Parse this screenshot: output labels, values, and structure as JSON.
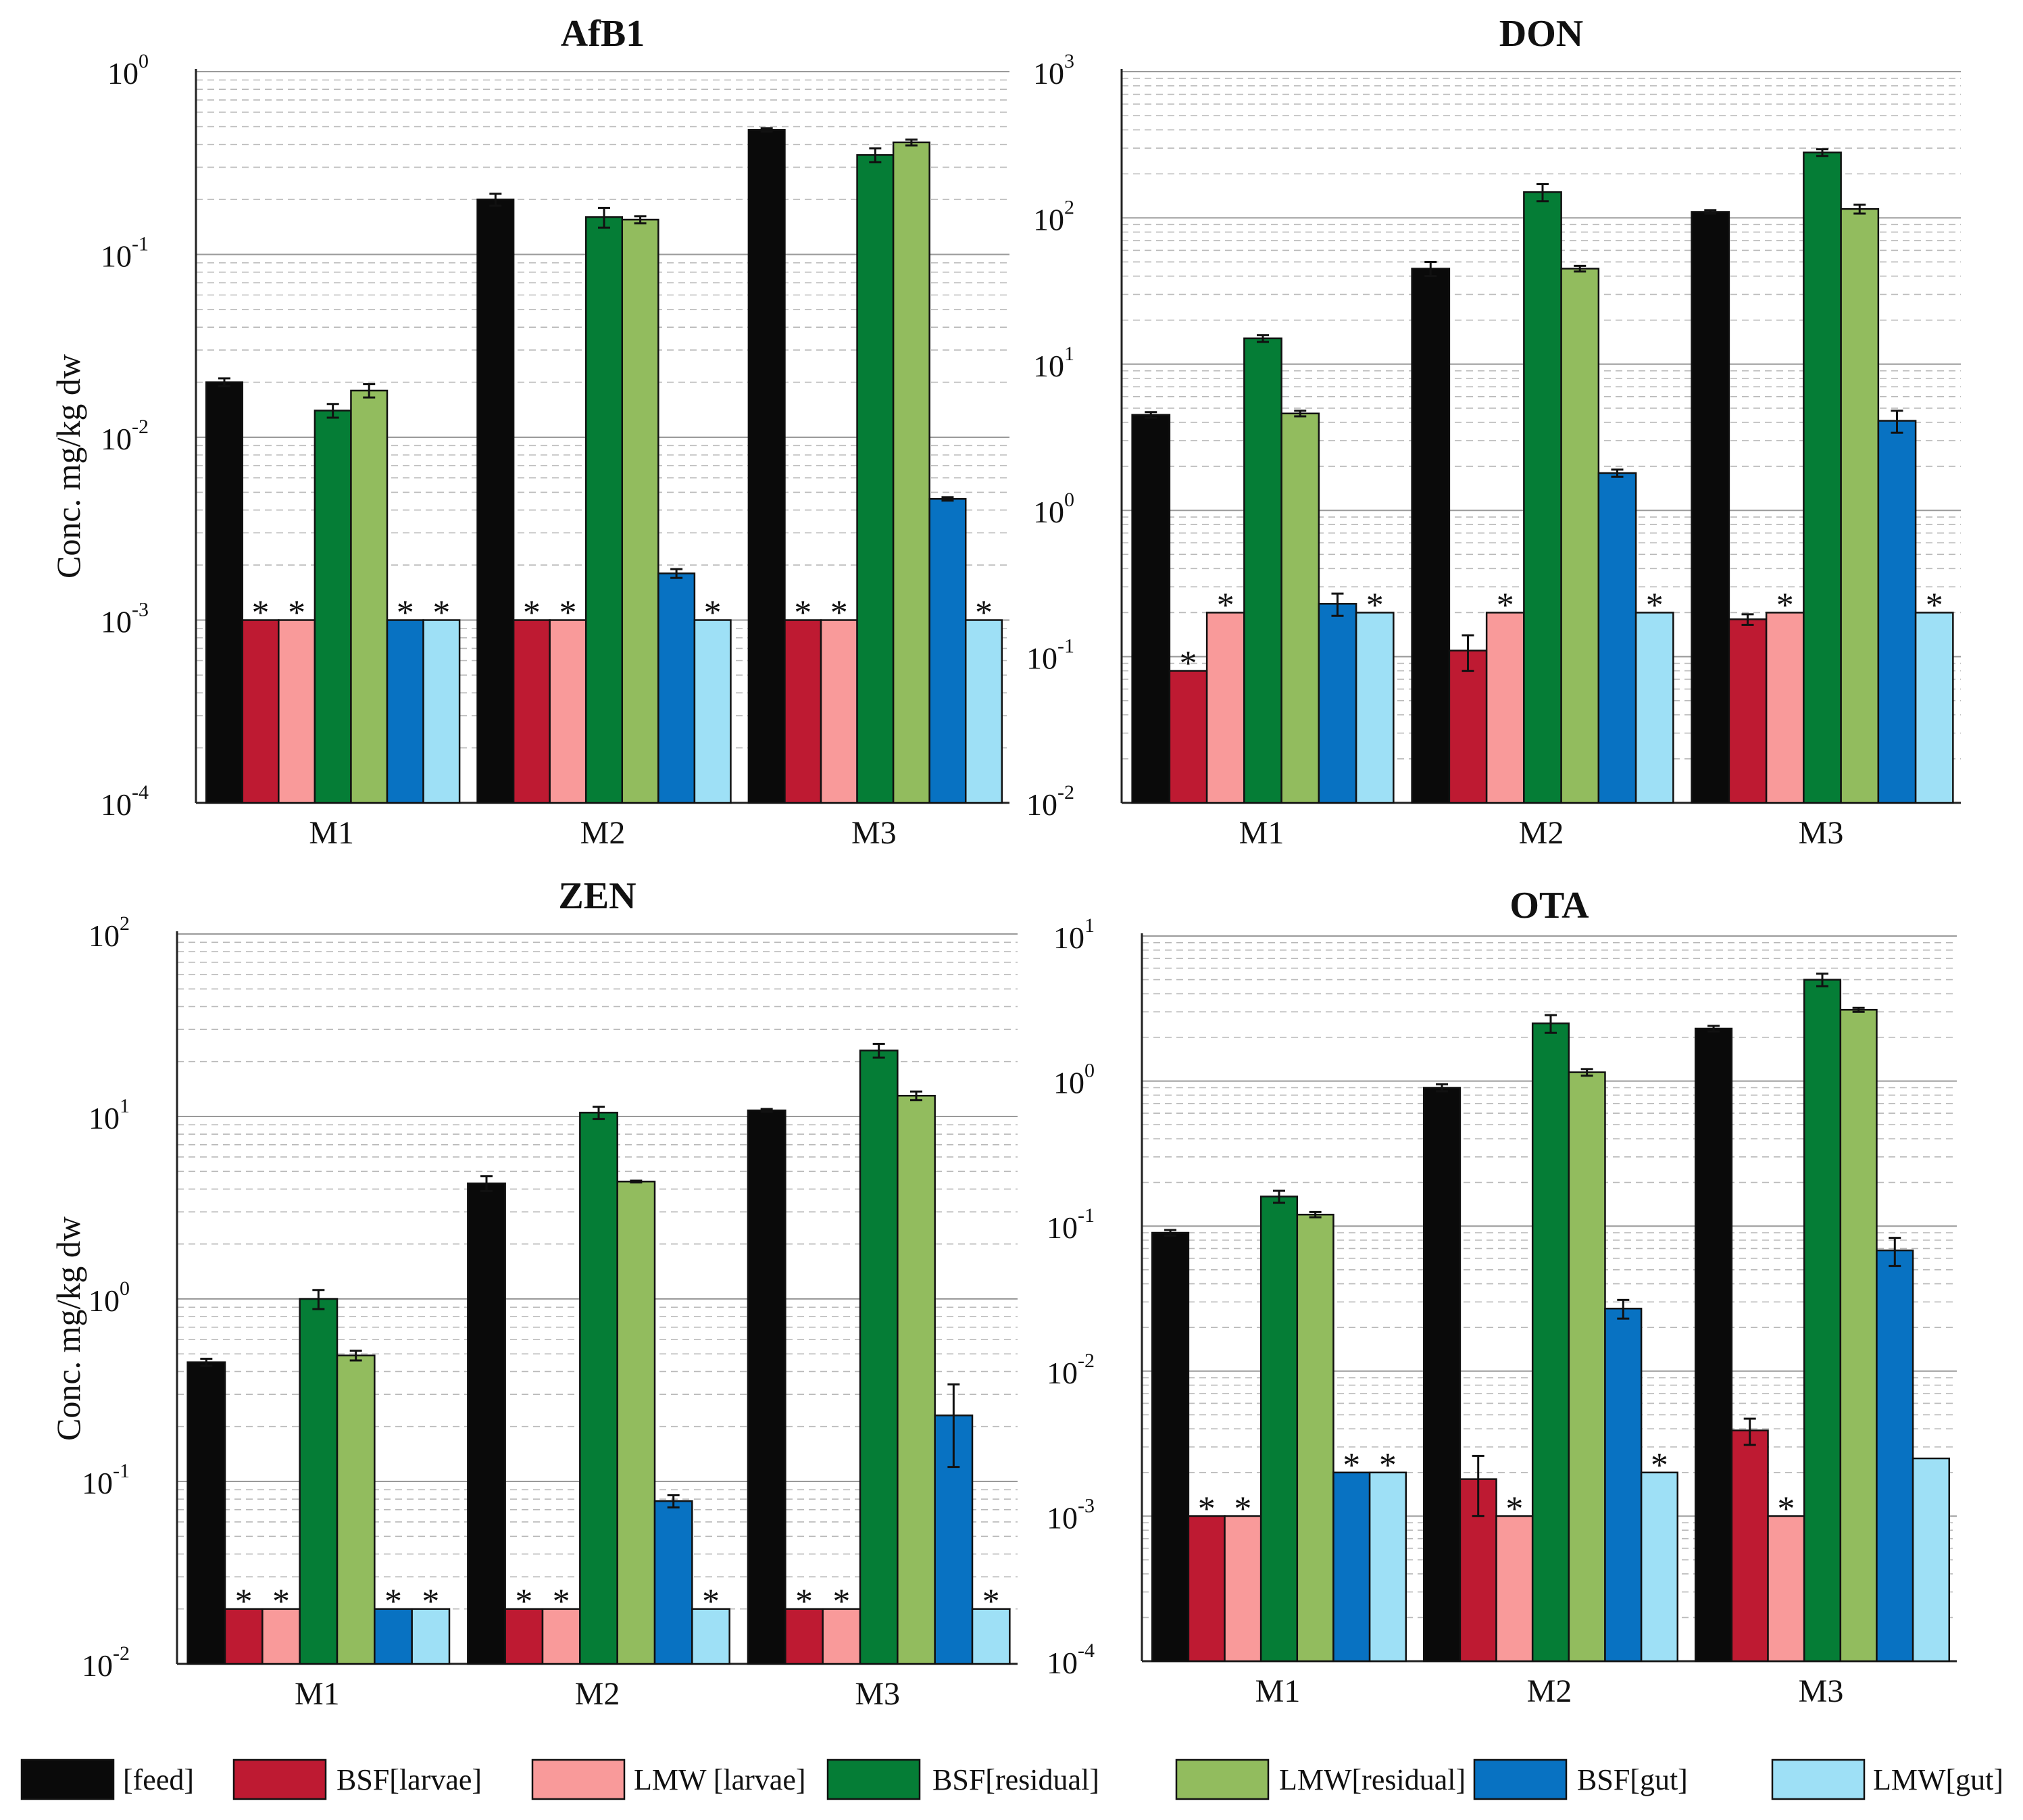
{
  "legend": [
    {
      "label": "[feed]",
      "color": "#0a0a0a"
    },
    {
      "label": "BSF[larvae]",
      "color": "#be1a32"
    },
    {
      "label": "LMW [larvae]",
      "color": "#f99a9a"
    },
    {
      "label": "BSF[residual]",
      "color": "#057d36"
    },
    {
      "label": "LMW[residual]",
      "color": "#92bc5e"
    },
    {
      "label": "BSF[gut]",
      "color": "#0872c2"
    },
    {
      "label": "LMW[gut]",
      "color": "#9ee0f6"
    }
  ],
  "chart_data": [
    {
      "type": "bar",
      "title": "AfB1",
      "ylabel": "Conc. mg/kg dw",
      "yscale": "log",
      "ylim_exp": [
        -4,
        0
      ],
      "categories": [
        "M1",
        "M2",
        "M3"
      ],
      "series": [
        {
          "name": "[feed]",
          "values": [
            0.02,
            0.2,
            0.48
          ],
          "err": [
            0.001,
            0.015,
            0.01
          ],
          "star": [
            false,
            false,
            false
          ]
        },
        {
          "name": "BSF[larvae]",
          "values": [
            0.001,
            0.001,
            0.001
          ],
          "err": [
            0,
            0,
            0
          ],
          "star": [
            true,
            true,
            true
          ]
        },
        {
          "name": "LMW [larvae]",
          "values": [
            0.001,
            0.001,
            0.001
          ],
          "err": [
            0,
            0,
            0
          ],
          "star": [
            true,
            true,
            true
          ]
        },
        {
          "name": "BSF[residual]",
          "values": [
            0.014,
            0.16,
            0.35
          ],
          "err": [
            0.0012,
            0.02,
            0.03
          ],
          "star": [
            false,
            false,
            false
          ]
        },
        {
          "name": "LMW[residual]",
          "values": [
            0.018,
            0.155,
            0.41
          ],
          "err": [
            0.0015,
            0.007,
            0.015
          ],
          "star": [
            false,
            false,
            false
          ]
        },
        {
          "name": "BSF[gut]",
          "values": [
            0.001,
            0.0018,
            0.0046
          ],
          "err": [
            0,
            0.0001,
            0.0001
          ],
          "star": [
            true,
            false,
            false
          ]
        },
        {
          "name": "LMW[gut]",
          "values": [
            0.001,
            0.001,
            0.001
          ],
          "err": [
            0,
            0,
            0
          ],
          "star": [
            true,
            true,
            true
          ]
        }
      ]
    },
    {
      "type": "bar",
      "title": "DON",
      "ylabel": "",
      "yscale": "log",
      "ylim_exp": [
        -2,
        3
      ],
      "categories": [
        "M1",
        "M2",
        "M3"
      ],
      "series": [
        {
          "name": "[feed]",
          "values": [
            4.5,
            45,
            110
          ],
          "err": [
            0.2,
            5,
            3
          ],
          "star": [
            false,
            false,
            false
          ]
        },
        {
          "name": "BSF[larvae]",
          "values": [
            0.08,
            0.11,
            0.18
          ],
          "err": [
            0,
            0.03,
            0.015
          ],
          "star": [
            true,
            false,
            false
          ]
        },
        {
          "name": "LMW [larvae]",
          "values": [
            0.2,
            0.2,
            0.2
          ],
          "err": [
            0,
            0,
            0
          ],
          "star": [
            true,
            true,
            true
          ]
        },
        {
          "name": "BSF[residual]",
          "values": [
            15,
            150,
            280
          ],
          "err": [
            0.8,
            20,
            15
          ],
          "star": [
            false,
            false,
            false
          ]
        },
        {
          "name": "LMW[residual]",
          "values": [
            4.6,
            45,
            115
          ],
          "err": [
            0.2,
            2,
            8
          ],
          "star": [
            false,
            false,
            false
          ]
        },
        {
          "name": "BSF[gut]",
          "values": [
            0.23,
            1.8,
            4.1
          ],
          "err": [
            0.04,
            0.1,
            0.7
          ],
          "star": [
            false,
            false,
            false
          ]
        },
        {
          "name": "LMW[gut]",
          "values": [
            0.2,
            0.2,
            0.2
          ],
          "err": [
            0,
            0,
            0
          ],
          "star": [
            true,
            true,
            true
          ]
        }
      ]
    },
    {
      "type": "bar",
      "title": "ZEN",
      "ylabel": "Conc. mg/kg dw",
      "yscale": "log",
      "ylim_exp": [
        -2,
        2
      ],
      "categories": [
        "M1",
        "M2",
        "M3"
      ],
      "series": [
        {
          "name": "[feed]",
          "values": [
            0.45,
            4.3,
            10.8
          ],
          "err": [
            0.02,
            0.4,
            0.2
          ],
          "star": [
            false,
            false,
            false
          ]
        },
        {
          "name": "BSF[larvae]",
          "values": [
            0.02,
            0.02,
            0.02
          ],
          "err": [
            0,
            0,
            0
          ],
          "star": [
            true,
            true,
            true
          ]
        },
        {
          "name": "LMW [larvae]",
          "values": [
            0.02,
            0.02,
            0.02
          ],
          "err": [
            0,
            0,
            0
          ],
          "star": [
            true,
            true,
            true
          ]
        },
        {
          "name": "BSF[residual]",
          "values": [
            1.0,
            10.5,
            23
          ],
          "err": [
            0.12,
            0.8,
            2
          ],
          "star": [
            false,
            false,
            false
          ]
        },
        {
          "name": "LMW[residual]",
          "values": [
            0.49,
            4.4,
            13
          ],
          "err": [
            0.03,
            0.05,
            0.7
          ],
          "star": [
            false,
            false,
            false
          ]
        },
        {
          "name": "BSF[gut]",
          "values": [
            0.02,
            0.078,
            0.23
          ],
          "err": [
            0,
            0.006,
            0.11
          ],
          "star": [
            true,
            false,
            false
          ]
        },
        {
          "name": "LMW[gut]",
          "values": [
            0.02,
            0.02,
            0.02
          ],
          "err": [
            0,
            0,
            0
          ],
          "star": [
            true,
            true,
            true
          ]
        }
      ]
    },
    {
      "type": "bar",
      "title": "OTA",
      "ylabel": "",
      "yscale": "log",
      "ylim_exp": [
        -4,
        1
      ],
      "categories": [
        "M1",
        "M2",
        "M3"
      ],
      "series": [
        {
          "name": "[feed]",
          "values": [
            0.09,
            0.9,
            2.3
          ],
          "err": [
            0.004,
            0.05,
            0.1
          ],
          "star": [
            false,
            false,
            false
          ]
        },
        {
          "name": "BSF[larvae]",
          "values": [
            0.001,
            0.0018,
            0.0039
          ],
          "err": [
            0,
            0.0008,
            0.0008
          ],
          "star": [
            true,
            false,
            false
          ]
        },
        {
          "name": "LMW [larvae]",
          "values": [
            0.001,
            0.001,
            0.001
          ],
          "err": [
            0,
            0,
            0
          ],
          "star": [
            true,
            true,
            true
          ]
        },
        {
          "name": "BSF[residual]",
          "values": [
            0.16,
            2.5,
            5.0
          ],
          "err": [
            0.015,
            0.35,
            0.5
          ],
          "star": [
            false,
            false,
            false
          ]
        },
        {
          "name": "LMW[residual]",
          "values": [
            0.12,
            1.15,
            3.1
          ],
          "err": [
            0.005,
            0.06,
            0.1
          ],
          "star": [
            false,
            false,
            false
          ]
        },
        {
          "name": "BSF[gut]",
          "values": [
            0.002,
            0.027,
            0.068
          ],
          "err": [
            0,
            0.004,
            0.015
          ],
          "star": [
            true,
            false,
            false
          ]
        },
        {
          "name": "LMW[gut]",
          "values": [
            0.002,
            0.002,
            0.0025
          ],
          "err": [
            0,
            0,
            0
          ],
          "star": [
            true,
            true,
            false
          ]
        }
      ]
    }
  ]
}
